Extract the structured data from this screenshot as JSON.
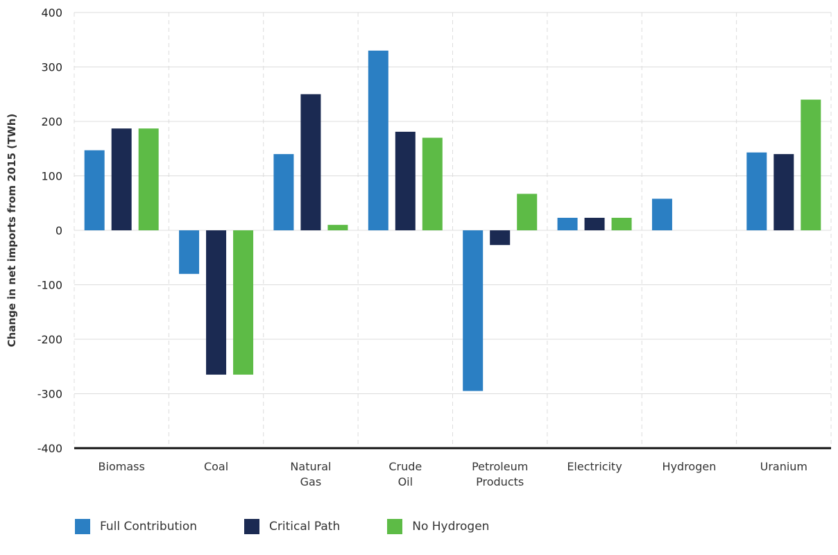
{
  "chart_data": {
    "type": "bar",
    "ylabel": "Change in net imports from 2015 (TWh)",
    "ylim": [
      -400,
      400
    ],
    "yticks": [
      400,
      300,
      200,
      100,
      0,
      -100,
      -200,
      -300,
      -400
    ],
    "ytick_labels": [
      "400",
      "300",
      "200",
      "100",
      "0",
      "-100",
      "-200",
      "-300",
      "-400"
    ],
    "categories": [
      [
        "Biomass"
      ],
      [
        "Coal"
      ],
      [
        "Natural",
        "Gas"
      ],
      [
        "Crude",
        "Oil"
      ],
      [
        "Petroleum",
        "Products"
      ],
      [
        "Electricity"
      ],
      [
        "Hydrogen"
      ],
      [
        "Uranium"
      ]
    ],
    "series": [
      {
        "name": "Full Contribution",
        "color": "#2b7fc3",
        "values": [
          147,
          -80,
          140,
          330,
          -295,
          23,
          58,
          143
        ]
      },
      {
        "name": "Critical Path",
        "color": "#1b2a52",
        "values": [
          187,
          -265,
          250,
          181,
          -27,
          23,
          0,
          140
        ]
      },
      {
        "name": "No Hydrogen",
        "color": "#5dbb46",
        "values": [
          187,
          -265,
          10,
          170,
          67,
          23,
          0,
          240
        ]
      }
    ],
    "grid": true,
    "legend_position": "bottom-left"
  }
}
